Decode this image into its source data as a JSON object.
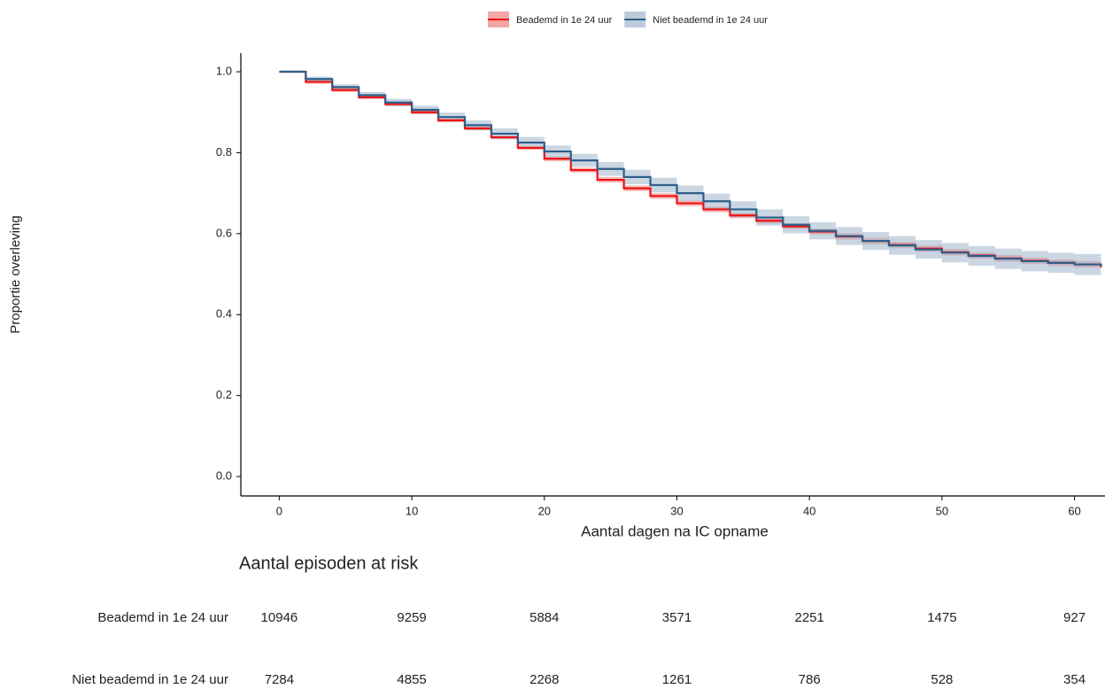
{
  "chart_data": {
    "type": "km",
    "xlabel": "Aantal dagen na IC opname",
    "ylabel": "Proportie overleving",
    "xlim": [
      -2.9,
      62.3
    ],
    "xticks": [
      0,
      10,
      20,
      30,
      40,
      50,
      60
    ],
    "ylim": [
      -0.048,
      1.046
    ],
    "yticks": [
      {
        "value": 0,
        "label": "0.0"
      },
      0.2,
      0.4,
      0.6,
      0.8,
      {
        "value": 1,
        "label": "1.0"
      }
    ],
    "x": [
      0,
      2,
      4,
      6,
      8,
      10,
      12,
      14,
      16,
      18,
      20,
      22,
      24,
      26,
      28,
      30,
      32,
      34,
      36,
      38,
      40,
      42,
      44,
      46,
      48,
      50,
      52,
      54,
      56,
      58,
      60,
      62
    ],
    "series": [
      {
        "name": "Beademd in 1e 24 uur",
        "color": "#ee1111",
        "band_color": "#f08080",
        "values": [
          1.0,
          0.975,
          0.955,
          0.937,
          0.92,
          0.9,
          0.88,
          0.86,
          0.838,
          0.812,
          0.785,
          0.757,
          0.733,
          0.712,
          0.693,
          0.675,
          0.66,
          0.645,
          0.632,
          0.618,
          0.605,
          0.593,
          0.582,
          0.572,
          0.563,
          0.554,
          0.546,
          0.539,
          0.533,
          0.528,
          0.524,
          0.517
        ],
        "lower": [
          1.0,
          0.97,
          0.95,
          0.932,
          0.915,
          0.895,
          0.875,
          0.855,
          0.833,
          0.807,
          0.779,
          0.751,
          0.726,
          0.705,
          0.686,
          0.668,
          0.653,
          0.638,
          0.625,
          0.611,
          0.598,
          0.585,
          0.574,
          0.564,
          0.555,
          0.546,
          0.538,
          0.531,
          0.525,
          0.52,
          0.516,
          0.509
        ],
        "upper": [
          1.0,
          0.98,
          0.96,
          0.942,
          0.925,
          0.905,
          0.885,
          0.865,
          0.843,
          0.817,
          0.791,
          0.763,
          0.74,
          0.719,
          0.7,
          0.682,
          0.667,
          0.652,
          0.639,
          0.625,
          0.612,
          0.601,
          0.59,
          0.58,
          0.571,
          0.562,
          0.554,
          0.547,
          0.541,
          0.536,
          0.532,
          0.525
        ]
      },
      {
        "name": "Niet beademd in 1e 24 uur",
        "color": "#2e5f8a",
        "band_color": "#9fb4ca",
        "values": [
          1.0,
          0.982,
          0.962,
          0.942,
          0.924,
          0.906,
          0.888,
          0.868,
          0.847,
          0.825,
          0.803,
          0.781,
          0.76,
          0.74,
          0.72,
          0.7,
          0.68,
          0.66,
          0.64,
          0.622,
          0.607,
          0.594,
          0.582,
          0.571,
          0.561,
          0.553,
          0.545,
          0.538,
          0.532,
          0.528,
          0.524,
          0.52
        ],
        "lower": [
          1.0,
          0.976,
          0.955,
          0.934,
          0.915,
          0.896,
          0.877,
          0.856,
          0.834,
          0.811,
          0.788,
          0.765,
          0.743,
          0.722,
          0.702,
          0.681,
          0.661,
          0.64,
          0.62,
          0.601,
          0.586,
          0.572,
          0.56,
          0.548,
          0.538,
          0.529,
          0.521,
          0.513,
          0.507,
          0.503,
          0.498,
          0.494
        ],
        "upper": [
          1.0,
          0.988,
          0.969,
          0.95,
          0.933,
          0.916,
          0.899,
          0.88,
          0.86,
          0.839,
          0.818,
          0.797,
          0.777,
          0.758,
          0.738,
          0.719,
          0.699,
          0.68,
          0.66,
          0.643,
          0.628,
          0.616,
          0.604,
          0.594,
          0.584,
          0.577,
          0.569,
          0.563,
          0.557,
          0.553,
          0.55,
          0.546
        ]
      }
    ],
    "risk_table": {
      "title": "Aantal episoden at risk",
      "rows": [
        {
          "name": "Beademd in 1e 24 uur",
          "values": [
            10946,
            9259,
            5884,
            3571,
            2251,
            1475,
            927
          ]
        },
        {
          "name": "Niet beademd in 1e 24 uur",
          "values": [
            7284,
            4855,
            2268,
            1261,
            786,
            528,
            354
          ]
        }
      ]
    }
  }
}
